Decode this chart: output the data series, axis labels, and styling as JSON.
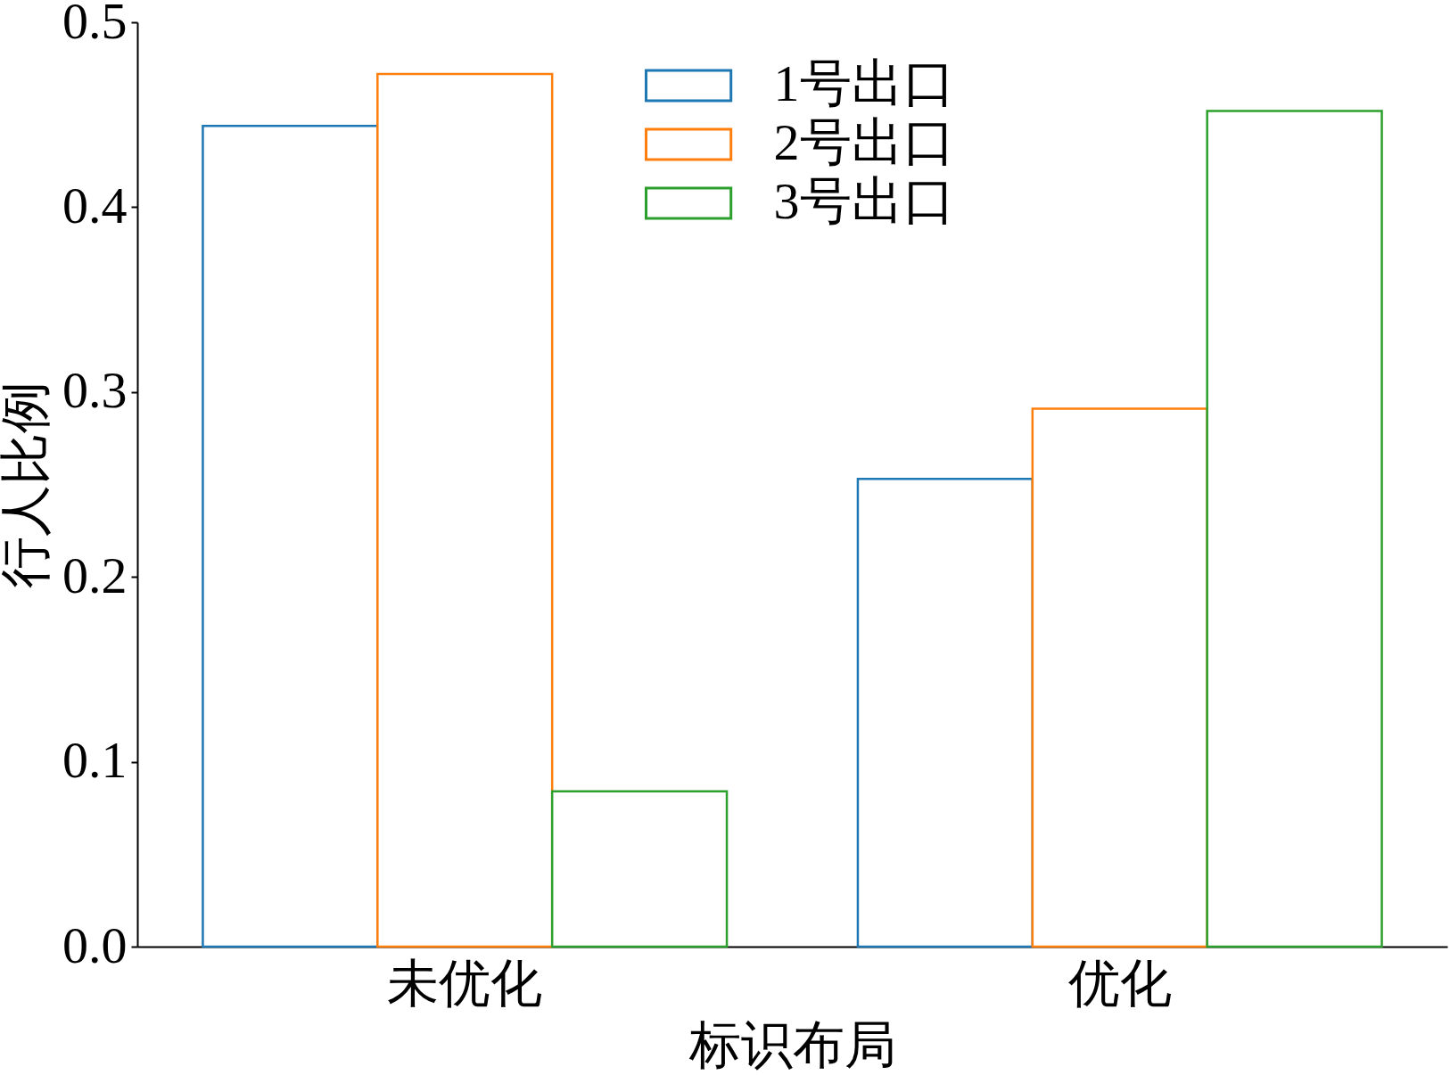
{
  "chart_data": {
    "type": "bar",
    "xlabel": "标识布局",
    "ylabel": "行人比例",
    "categories": [
      "未优化",
      "优化"
    ],
    "series": [
      {
        "name": "1号出口",
        "color": "#1f77b4",
        "values": [
          0.444,
          0.253
        ]
      },
      {
        "name": "2号出口",
        "color": "#ff7f0e",
        "values": [
          0.472,
          0.291
        ]
      },
      {
        "name": "3号出口",
        "color": "#2ca02c",
        "values": [
          0.084,
          0.452
        ]
      }
    ],
    "ylim": [
      0,
      0.5
    ],
    "yticks": [
      {
        "value": 0,
        "label": "0.0"
      },
      0.1,
      0.2,
      0.3,
      0.4,
      0.5
    ],
    "legend": "top"
  }
}
